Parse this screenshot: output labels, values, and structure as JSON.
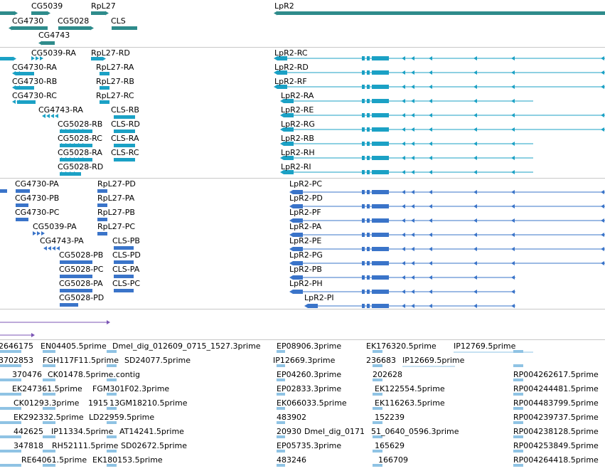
{
  "colors": {
    "gene": "#2e8b8b",
    "transcript_a": "#1ba1c5",
    "transcript_b": "#3a74c9",
    "purple": "#7b55b5",
    "est": "#8fc3e4",
    "divider": "#c8c8c8"
  },
  "tracks": {
    "genes": [
      {
        "label": "CG5039"
      },
      {
        "label": "RpL27"
      },
      {
        "label": "LpR2"
      },
      {
        "label": "CG4730"
      },
      {
        "label": "CG5028"
      },
      {
        "label": "CLS"
      },
      {
        "label": "CG4743"
      }
    ],
    "transcripts_a": [
      {
        "label": "CG5039-RA"
      },
      {
        "label": "RpL27-RD"
      },
      {
        "label": "LpR2-RC"
      },
      {
        "label": "CG4730-RA"
      },
      {
        "label": "RpL27-RA"
      },
      {
        "label": "LpR2-RD"
      },
      {
        "label": "CG4730-RB"
      },
      {
        "label": "RpL27-RB"
      },
      {
        "label": "LpR2-RF"
      },
      {
        "label": "CG4730-RC"
      },
      {
        "label": "RpL27-RC"
      },
      {
        "label": "LpR2-RA"
      },
      {
        "label": "CG4743-RA"
      },
      {
        "label": "CLS-RB"
      },
      {
        "label": "LpR2-RE"
      },
      {
        "label": "CG5028-RB"
      },
      {
        "label": "CLS-RD"
      },
      {
        "label": "LpR2-RG"
      },
      {
        "label": "CG5028-RC"
      },
      {
        "label": "CLS-RA"
      },
      {
        "label": "LpR2-RB"
      },
      {
        "label": "CG5028-RA"
      },
      {
        "label": "CLS-RC"
      },
      {
        "label": "LpR2-RH"
      },
      {
        "label": "CG5028-RD"
      },
      {
        "label": "LpR2-RI"
      }
    ],
    "transcripts_b": [
      {
        "label": "CG4730-PA"
      },
      {
        "label": "RpL27-PD"
      },
      {
        "label": "LpR2-PC"
      },
      {
        "label": "CG4730-PB"
      },
      {
        "label": "RpL27-PA"
      },
      {
        "label": "LpR2-PD"
      },
      {
        "label": "CG4730-PC"
      },
      {
        "label": "RpL27-PB"
      },
      {
        "label": "LpR2-PF"
      },
      {
        "label": "CG5039-PA"
      },
      {
        "label": "RpL27-PC"
      },
      {
        "label": "LpR2-PA"
      },
      {
        "label": "CG4743-PA"
      },
      {
        "label": "CLS-PB"
      },
      {
        "label": "LpR2-PE"
      },
      {
        "label": "CG5028-PB"
      },
      {
        "label": "CLS-PD"
      },
      {
        "label": "LpR2-PG"
      },
      {
        "label": "CG5028-PC"
      },
      {
        "label": "CLS-PA"
      },
      {
        "label": "LpR2-PB"
      },
      {
        "label": "CG5028-PA"
      },
      {
        "label": "CLS-PC"
      },
      {
        "label": "LpR2-PH"
      },
      {
        "label": "CG5028-PD"
      },
      {
        "label": "LpR2-PI"
      }
    ],
    "ests": [
      {
        "label": "2646175"
      },
      {
        "label": "EN04405.5prime"
      },
      {
        "label": "Dmel_dig_012609_0715_1527.3prime"
      },
      {
        "label": "EP08906.3prime"
      },
      {
        "label": "EK176320.5prime"
      },
      {
        "label": "IP12769.5prime"
      },
      {
        "label": "3702853"
      },
      {
        "label": "FGH117F11.5prime"
      },
      {
        "label": "SD24077.5prime"
      },
      {
        "label": "IP12669.3prime"
      },
      {
        "label": "236683"
      },
      {
        "label": "IP12669.5prime"
      },
      {
        "label": "370476"
      },
      {
        "label": "CK01478.5prime.contig"
      },
      {
        "label": "EP04260.3prime"
      },
      {
        "label": "202628"
      },
      {
        "label": "RP004262617.5prime"
      },
      {
        "label": "EK247361.5prime"
      },
      {
        "label": "FGM301F02.3prime"
      },
      {
        "label": "EP02833.3prime"
      },
      {
        "label": "EK122554.5prime"
      },
      {
        "label": "RP004244481.5prime"
      },
      {
        "label": "CK01293.3prime"
      },
      {
        "label": "1915"
      },
      {
        "label": "13GM18210.5prime"
      },
      {
        "label": "EK066033.5prime"
      },
      {
        "label": "EK116263.5prime"
      },
      {
        "label": "RP004483799.5prime"
      },
      {
        "label": "EK292332.5prime"
      },
      {
        "label": "LD22959.5prime"
      },
      {
        "label": "483902"
      },
      {
        "label": "152239"
      },
      {
        "label": "RP004239737.5prime"
      },
      {
        "label": "442625"
      },
      {
        "label": "IP11334.5prime"
      },
      {
        "label": "AT14241.5prime"
      },
      {
        "label": "20930"
      },
      {
        "label": "Dmel_dig_0171"
      },
      {
        "label": "51_0640_0596.3prime"
      },
      {
        "label": "RP004238128.5prime"
      },
      {
        "label": "347818"
      },
      {
        "label": "RH52111.5prime"
      },
      {
        "label": "SD02672.5prime"
      },
      {
        "label": "EP05735.3prime"
      },
      {
        "label": "165629"
      },
      {
        "label": "RP004253849.5prime"
      },
      {
        "label": "RE64061.5prime"
      },
      {
        "label": "EK180153.5prime"
      },
      {
        "label": "483246"
      },
      {
        "label": "166709"
      },
      {
        "label": "RP004264418.5prime"
      }
    ]
  }
}
